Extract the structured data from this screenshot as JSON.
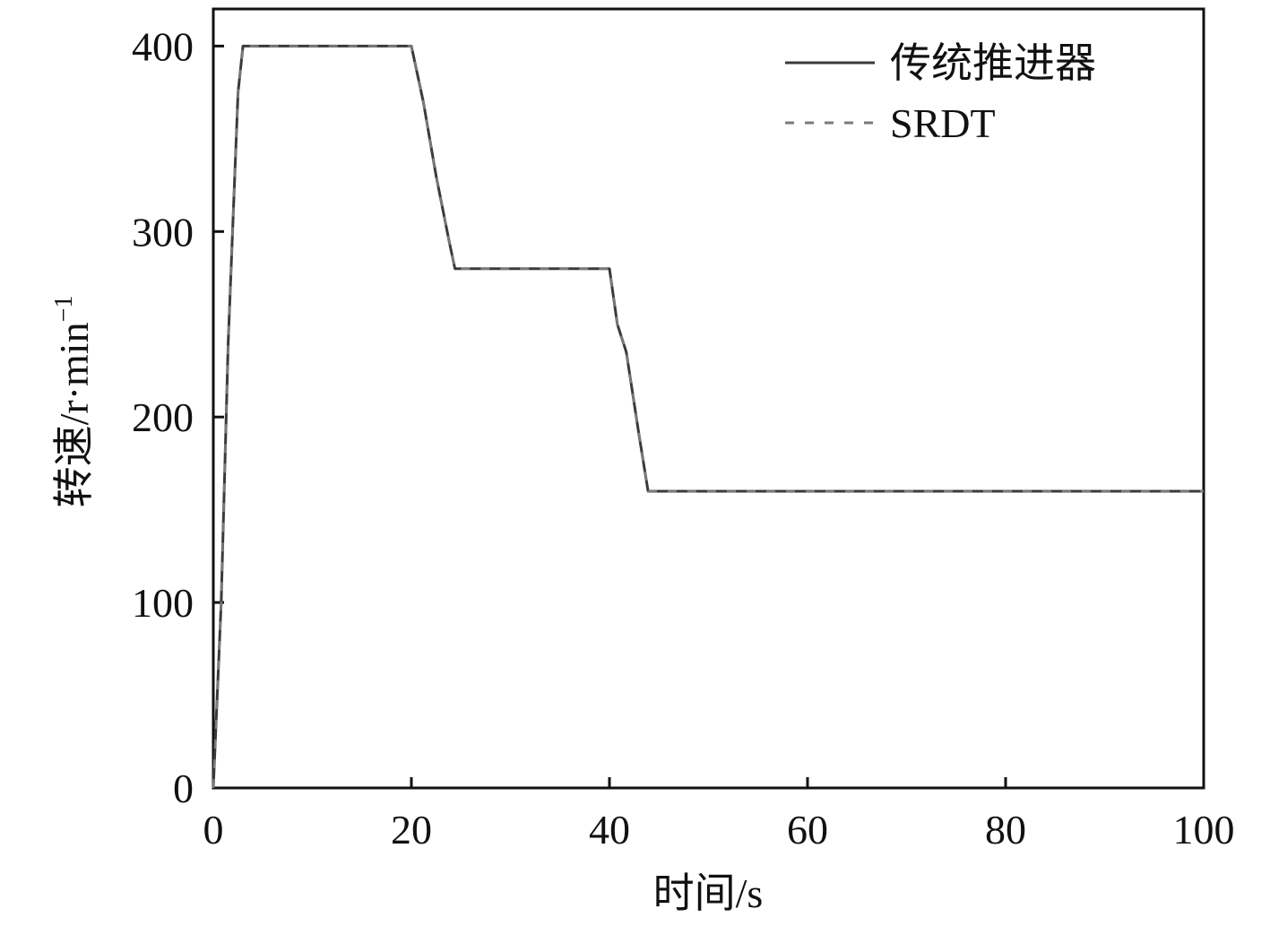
{
  "chart_data": {
    "type": "line",
    "title": "",
    "xlabel": "时间/s",
    "ylabel": {
      "base": "转速/r·min",
      "superscript": "−1"
    },
    "xlim": [
      0,
      100
    ],
    "ylim": [
      0,
      420
    ],
    "xticks": [
      0,
      20,
      40,
      60,
      80,
      100
    ],
    "yticks": [
      0,
      100,
      200,
      300,
      400
    ],
    "grid": false,
    "legend_position": "top-right",
    "series": [
      {
        "name": "传统推进器",
        "style": "solid",
        "color": "#3a3a3a",
        "x": [
          0,
          0.8,
          1.5,
          2.5,
          3,
          20,
          21.2,
          22.5,
          23.8,
          24.4,
          40,
          40.8,
          41.7,
          43,
          43.9,
          100
        ],
        "y": [
          0,
          100,
          240,
          375,
          400,
          400,
          370,
          330,
          295,
          280,
          280,
          250,
          235,
          190,
          160,
          160
        ]
      },
      {
        "name": "SRDT",
        "style": "dashed",
        "color": "#7a7a7a",
        "x": [
          0,
          0.8,
          1.5,
          2.5,
          3,
          20,
          21.2,
          22.5,
          23.8,
          24.4,
          40,
          40.8,
          41.7,
          43,
          43.9,
          100
        ],
        "y": [
          0,
          100,
          240,
          375,
          400,
          400,
          370,
          330,
          295,
          280,
          280,
          250,
          235,
          190,
          160,
          160
        ]
      }
    ]
  }
}
